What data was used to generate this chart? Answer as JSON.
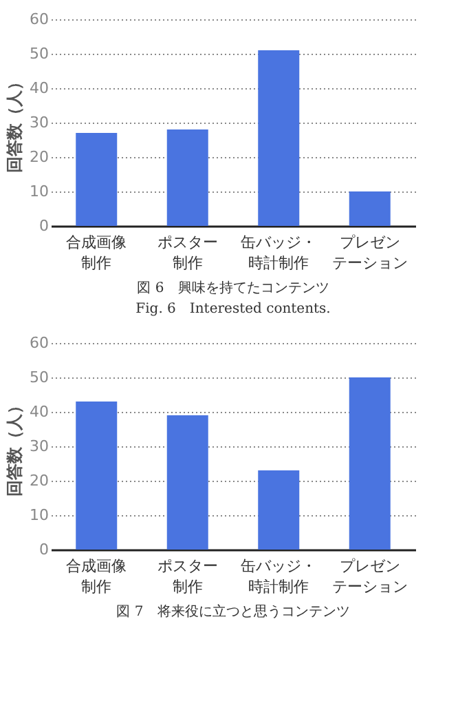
{
  "chart_data": [
    {
      "type": "bar",
      "categories": [
        "合成画像制作",
        "ポスター制作",
        "缶バッジ・時計制作",
        "プレゼンテーション"
      ],
      "values": [
        27,
        28,
        51,
        10
      ],
      "color": "#4a74e0",
      "ylabel": "回答数（人）",
      "ylim": [
        0,
        60
      ],
      "yticks": [
        0,
        10,
        20,
        30,
        40,
        50,
        60
      ],
      "grid": "y",
      "annotations": [
        "図 6　興味を持てたコンテンツ",
        "Fig. 6　Interested contents."
      ]
    },
    {
      "type": "bar",
      "categories": [
        "合成画像制作",
        "ポスター制作",
        "缶バッジ・時計制作",
        "プレゼンテーション"
      ],
      "values": [
        43,
        39,
        23,
        50
      ],
      "color": "#4a74e0",
      "ylabel": "回答数（人）",
      "ylim": [
        0,
        60
      ],
      "yticks": [
        0,
        10,
        20,
        30,
        40,
        50,
        60
      ],
      "grid": "y",
      "annotations": [
        "図 7　将来役に立つと思うコンテンツ"
      ]
    }
  ]
}
